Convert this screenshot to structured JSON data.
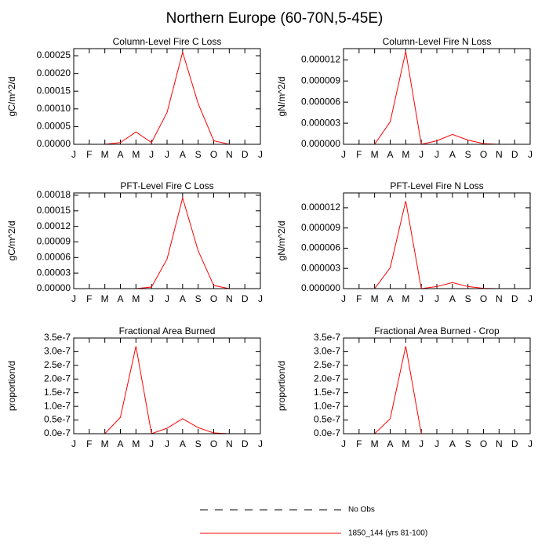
{
  "title": "Northern Europe (60-70N,5-45E)",
  "legend": [
    {
      "label": "No Obs",
      "color": "#000000",
      "dash": "dashed"
    },
    {
      "label": "1850_144 (yrs 81-100)",
      "color": "#ff0000",
      "dash": "solid"
    }
  ],
  "chart_data": [
    {
      "type": "line",
      "title": "Column-Level Fire C Loss",
      "ylabel": "gC/m^2/d",
      "categories": [
        "J",
        "F",
        "M",
        "A",
        "M",
        "J",
        "J",
        "A",
        "S",
        "O",
        "N",
        "D",
        "J"
      ],
      "values": [
        0,
        0,
        0,
        5e-06,
        3.5e-05,
        5e-06,
        9e-05,
        0.00026,
        0.000115,
        1e-05,
        0,
        0,
        0
      ],
      "color": "#ff0000",
      "ylim": [
        0,
        0.00027
      ],
      "yticks": [
        {
          "value": 0,
          "label": "0.00000"
        },
        {
          "value": 5e-05,
          "label": "0.00005"
        },
        {
          "value": 0.0001,
          "label": "0.00010"
        },
        {
          "value": 0.00015,
          "label": "0.00015"
        },
        {
          "value": 0.0002,
          "label": "0.00020"
        },
        {
          "value": 0.00025,
          "label": "0.00025"
        }
      ]
    },
    {
      "type": "line",
      "title": "Column-Level Fire N Loss",
      "ylabel": "gN/m^2/d",
      "categories": [
        "J",
        "F",
        "M",
        "A",
        "M",
        "J",
        "J",
        "A",
        "S",
        "O",
        "N",
        "D",
        "J"
      ],
      "values": [
        0,
        0,
        0,
        3.2e-06,
        1.32e-05,
        0,
        5e-07,
        1.4e-06,
        6e-07,
        1e-07,
        0,
        0,
        0
      ],
      "color": "#ff0000",
      "ylim": [
        0,
        1.36e-05
      ],
      "yticks": [
        {
          "value": 0,
          "label": "0.000000"
        },
        {
          "value": 3e-06,
          "label": "0.000003"
        },
        {
          "value": 6e-06,
          "label": "0.000006"
        },
        {
          "value": 9e-06,
          "label": "0.000009"
        },
        {
          "value": 1.2e-05,
          "label": "0.000012"
        }
      ]
    },
    {
      "type": "line",
      "title": "PFT-Level Fire C Loss",
      "ylabel": "gC/m^2/d",
      "categories": [
        "J",
        "F",
        "M",
        "A",
        "M",
        "J",
        "J",
        "A",
        "S",
        "O",
        "N",
        "D",
        "J"
      ],
      "values": [
        0,
        0,
        0,
        0,
        0,
        3e-06,
        5.7e-05,
        0.000175,
        7.3e-05,
        6e-06,
        0,
        0,
        0
      ],
      "color": "#ff0000",
      "ylim": [
        0,
        0.0001845
      ],
      "yticks": [
        {
          "value": 0,
          "label": "0.00000"
        },
        {
          "value": 3e-05,
          "label": "0.00003"
        },
        {
          "value": 6e-05,
          "label": "0.00006"
        },
        {
          "value": 9e-05,
          "label": "0.00009"
        },
        {
          "value": 0.00012,
          "label": "0.00012"
        },
        {
          "value": 0.00015,
          "label": "0.00015"
        },
        {
          "value": 0.00018,
          "label": "0.00018"
        }
      ]
    },
    {
      "type": "line",
      "title": "PFT-Level Fire N Loss",
      "ylabel": "gN/m^2/d",
      "categories": [
        "J",
        "F",
        "M",
        "A",
        "M",
        "J",
        "J",
        "A",
        "S",
        "O",
        "N",
        "D",
        "J"
      ],
      "values": [
        0,
        0,
        0,
        3.1e-06,
        1.3e-05,
        0,
        3e-07,
        9e-07,
        3e-07,
        5e-08,
        0,
        0,
        0
      ],
      "color": "#ff0000",
      "ylim": [
        0,
        1.42e-05
      ],
      "yticks": [
        {
          "value": 0,
          "label": "0.000000"
        },
        {
          "value": 3e-06,
          "label": "0.000003"
        },
        {
          "value": 6e-06,
          "label": "0.000006"
        },
        {
          "value": 9e-06,
          "label": "0.000009"
        },
        {
          "value": 1.2e-05,
          "label": "0.000012"
        }
      ]
    },
    {
      "type": "line",
      "title": "Fractional Area Burned",
      "ylabel": "proportion/d",
      "categories": [
        "J",
        "F",
        "M",
        "A",
        "M",
        "J",
        "J",
        "A",
        "S",
        "O",
        "N",
        "D",
        "J"
      ],
      "values": [
        0,
        0,
        0,
        6e-08,
        3.2e-07,
        0,
        2e-08,
        5.5e-08,
        2.2e-08,
        3e-09,
        0,
        0,
        0
      ],
      "color": "#ff0000",
      "ylim": [
        0,
        3.5e-07
      ],
      "yticks": [
        {
          "value": 0,
          "label": "0.0e-7"
        },
        {
          "value": 5e-08,
          "label": "0.5e-7"
        },
        {
          "value": 1e-07,
          "label": "1.0e-7"
        },
        {
          "value": 1.5e-07,
          "label": "1.5e-7"
        },
        {
          "value": 2e-07,
          "label": "2.0e-7"
        },
        {
          "value": 2.5e-07,
          "label": "2.5e-7"
        },
        {
          "value": 3e-07,
          "label": "3.0e-7"
        },
        {
          "value": 3.5e-07,
          "label": "3.5e-7"
        }
      ]
    },
    {
      "type": "line",
      "title": "Fractional Area Burned - Crop",
      "ylabel": "proportion/d",
      "categories": [
        "J",
        "F",
        "M",
        "A",
        "M",
        "J",
        "J",
        "A",
        "S",
        "O",
        "N",
        "D",
        "J"
      ],
      "values": [
        0,
        0,
        0,
        5.5e-08,
        3.2e-07,
        0,
        null,
        null,
        null,
        null,
        null,
        null,
        null
      ],
      "color": "#ff0000",
      "ylim": [
        0,
        3.5e-07
      ],
      "yticks": [
        {
          "value": 0,
          "label": "0.0e-7"
        },
        {
          "value": 5e-08,
          "label": "0.5e-7"
        },
        {
          "value": 1e-07,
          "label": "1.0e-7"
        },
        {
          "value": 1.5e-07,
          "label": "1.5e-7"
        },
        {
          "value": 2e-07,
          "label": "2.0e-7"
        },
        {
          "value": 2.5e-07,
          "label": "2.5e-7"
        },
        {
          "value": 3e-07,
          "label": "3.0e-7"
        },
        {
          "value": 3.5e-07,
          "label": "3.5e-7"
        }
      ]
    }
  ]
}
